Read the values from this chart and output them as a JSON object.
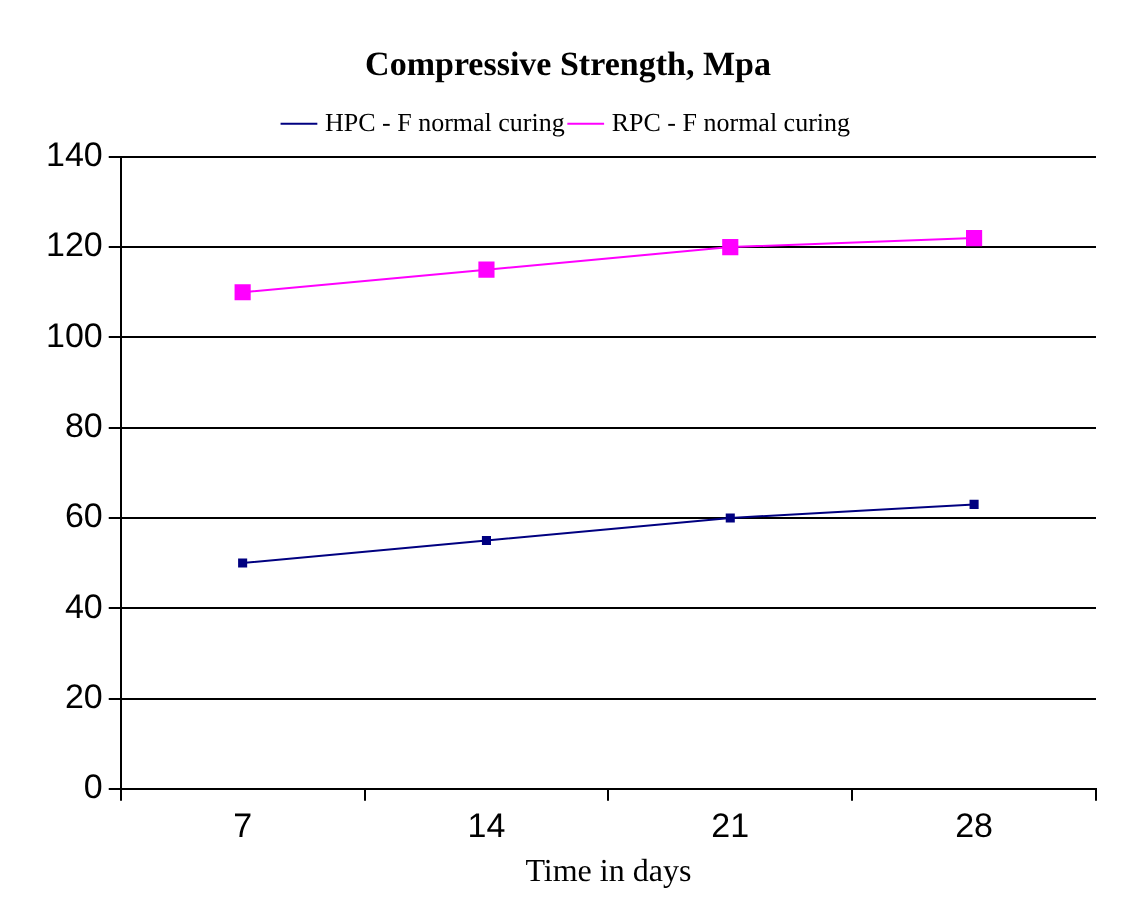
{
  "chart_data": {
    "type": "line",
    "title": "Compressive Strength, Mpa",
    "xlabel": "Time in days",
    "categories": [
      "7",
      "14",
      "21",
      "28"
    ],
    "series": [
      {
        "name": "HPC - F normal curing",
        "color": "#000080",
        "values": [
          50,
          55,
          60,
          63
        ]
      },
      {
        "name": "RPC - F normal curing",
        "color": "#ff00ff",
        "values": [
          110,
          115,
          120,
          122
        ]
      }
    ],
    "ylim": [
      0,
      140
    ],
    "yticks": [
      0,
      20,
      40,
      60,
      80,
      100,
      120,
      140
    ],
    "grid": "y",
    "legend": "top",
    "marker": "square",
    "line_style": "solid"
  }
}
